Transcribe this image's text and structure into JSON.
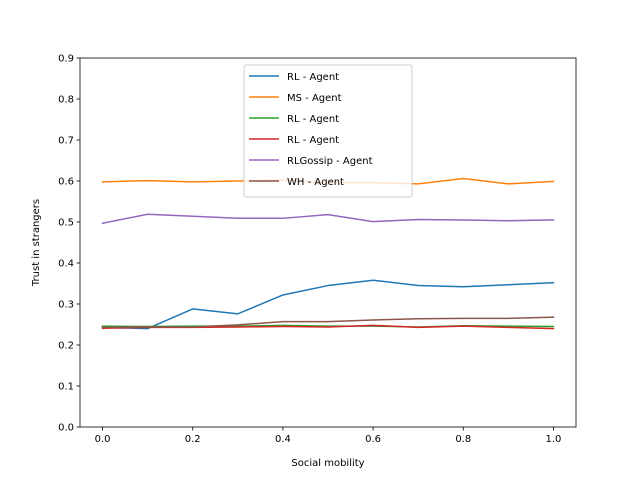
{
  "chart_data": {
    "type": "line",
    "title": "",
    "xlabel": "Social mobility",
    "ylabel": "Trust in strangers",
    "xlim": [
      -0.05,
      1.05
    ],
    "ylim": [
      0.0,
      0.9
    ],
    "xticks": [
      0.0,
      0.2,
      0.4,
      0.6,
      0.8,
      1.0
    ],
    "xtick_labels": [
      "0.0",
      "0.2",
      "0.4",
      "0.6",
      "0.8",
      "1.0"
    ],
    "yticks": [
      0.0,
      0.1,
      0.2,
      0.3,
      0.4,
      0.5,
      0.6,
      0.7,
      0.8,
      0.9
    ],
    "ytick_labels": [
      "0.0",
      "0.1",
      "0.2",
      "0.3",
      "0.4",
      "0.5",
      "0.6",
      "0.7",
      "0.8",
      "0.9"
    ],
    "grid": false,
    "legend_position": "upper-center",
    "x": [
      0.0,
      0.1,
      0.2,
      0.3,
      0.4,
      0.5,
      0.6,
      0.7,
      0.8,
      0.9,
      1.0
    ],
    "series": [
      {
        "name": "RL - Agent",
        "color": "#1f77b4",
        "values": [
          0.243,
          0.24,
          0.288,
          0.276,
          0.322,
          0.345,
          0.358,
          0.345,
          0.342,
          0.347,
          0.352
        ]
      },
      {
        "name": "MS - Agent",
        "color": "#ff7f0e",
        "values": [
          0.598,
          0.601,
          0.598,
          0.6,
          0.602,
          0.596,
          0.596,
          0.593,
          0.606,
          0.593,
          0.599
        ]
      },
      {
        "name": "RL - Agent",
        "color": "#2ca02c",
        "values": [
          0.246,
          0.245,
          0.246,
          0.246,
          0.248,
          0.246,
          0.246,
          0.244,
          0.247,
          0.246,
          0.245
        ]
      },
      {
        "name": "RL - Agent",
        "color": "#d62728",
        "values": [
          0.241,
          0.243,
          0.243,
          0.244,
          0.245,
          0.244,
          0.248,
          0.243,
          0.246,
          0.243,
          0.24
        ]
      },
      {
        "name": "RLGossip - Agent",
        "color": "#9467bd",
        "values": [
          0.497,
          0.519,
          0.514,
          0.509,
          0.509,
          0.518,
          0.501,
          0.506,
          0.505,
          0.503,
          0.505
        ]
      },
      {
        "name": "WH - Agent",
        "color": "#8c564b",
        "values": [
          0.243,
          0.244,
          0.244,
          0.249,
          0.257,
          0.257,
          0.261,
          0.264,
          0.265,
          0.265,
          0.268
        ]
      }
    ]
  }
}
